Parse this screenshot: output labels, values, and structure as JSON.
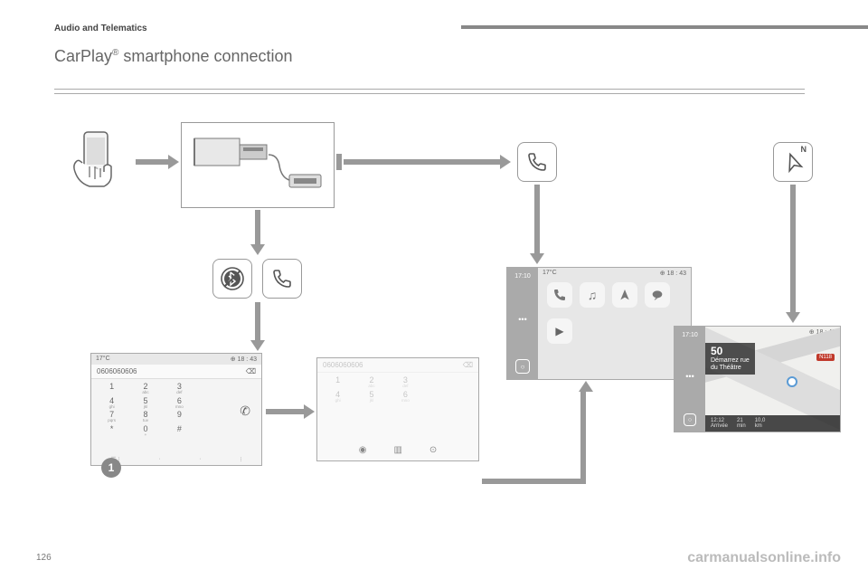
{
  "header": {
    "section": "Audio and Telematics",
    "title_pre": "CarPlay",
    "title_sup": "®",
    "title_post": " smartphone connection"
  },
  "page_number": "126",
  "watermark": "carmanualsonline.info",
  "icons": {
    "phone": "phone-icon",
    "nav": "N",
    "no_bt": "no-bluetooth-icon"
  },
  "status": {
    "temp": "17°C",
    "time": "18 : 43"
  },
  "dialer": {
    "number": "0606060606",
    "keys": [
      {
        "d": "1",
        "l": ""
      },
      {
        "d": "2",
        "l": "abc"
      },
      {
        "d": "3",
        "l": "def"
      },
      {
        "d": "4",
        "l": "ghi"
      },
      {
        "d": "5",
        "l": "jkl"
      },
      {
        "d": "6",
        "l": "mno"
      },
      {
        "d": "7",
        "l": "pqrs"
      },
      {
        "d": "8",
        "l": "tuv"
      },
      {
        "d": "9",
        "l": ""
      },
      {
        "d": "*",
        "l": ""
      },
      {
        "d": "0",
        "l": "+"
      },
      {
        "d": "#",
        "l": ""
      }
    ]
  },
  "carplay": {
    "side_time": "17:10",
    "apps": [
      "phone",
      "music",
      "maps",
      "messages"
    ]
  },
  "nav": {
    "dist": "50",
    "instr1": "Démarrez rue",
    "instr2": "du Théâtre",
    "eta_time": "12:12",
    "eta_label1": "Arrivée",
    "eta_min": "21",
    "eta_label2": "min",
    "eta_km": "10,0",
    "eta_label3": "km",
    "badge": "N118"
  },
  "step": "1",
  "colors": {
    "line": "#999999",
    "text": "#555555",
    "accent": "#5b9bd5",
    "red": "#c0392b"
  }
}
